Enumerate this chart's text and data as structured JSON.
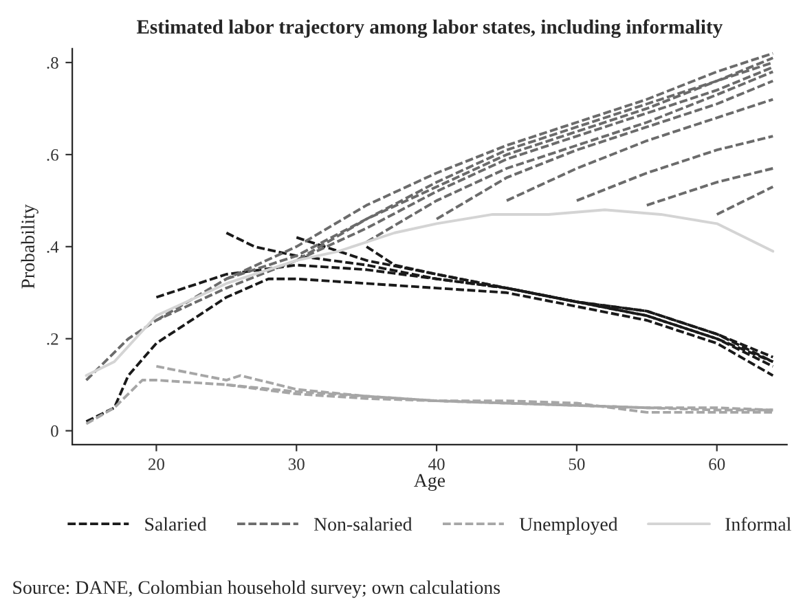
{
  "chart_data": {
    "type": "line",
    "title": "Estimated labor trajectory among labor states, including informality",
    "xlabel": "Age",
    "ylabel": "Probability",
    "xlim": [
      14,
      65
    ],
    "xticks": [
      20,
      30,
      40,
      50,
      60
    ],
    "ylim": [
      -0.03,
      0.83
    ],
    "yticks": [
      0,
      {
        "value": 0.2,
        "label": ".2"
      },
      {
        "value": 0.4,
        "label": ".4"
      },
      {
        "value": 0.6,
        "label": ".6"
      },
      {
        "value": 0.8,
        "label": ".8"
      }
    ],
    "grid": false,
    "legend": "bottom",
    "line_style": "dashed",
    "marker": "none",
    "annotations": [
      "Source: DANE, Colombian household survey; own calculations"
    ],
    "series": [
      {
        "name": "Salaried",
        "color": "#1a1a1a",
        "x": [
          15,
          17,
          18,
          20,
          25,
          28,
          30,
          35,
          40,
          45,
          50,
          55,
          60,
          64
        ],
        "values": [
          0.02,
          0.05,
          0.12,
          0.19,
          0.29,
          0.33,
          0.33,
          0.32,
          0.31,
          0.3,
          0.27,
          0.24,
          0.19,
          0.12
        ]
      },
      {
        "color": "#1a1a1a",
        "x": [
          20,
          25,
          30,
          35,
          40,
          45,
          50,
          55,
          60,
          64
        ],
        "values": [
          0.29,
          0.34,
          0.36,
          0.35,
          0.33,
          0.31,
          0.28,
          0.25,
          0.2,
          0.15
        ]
      },
      {
        "color": "#1a1a1a",
        "x": [
          25,
          27,
          30,
          35,
          40,
          45,
          50,
          55,
          60,
          64
        ],
        "values": [
          0.43,
          0.4,
          0.38,
          0.36,
          0.33,
          0.31,
          0.28,
          0.26,
          0.21,
          0.16
        ]
      },
      {
        "color": "#1a1a1a",
        "x": [
          30,
          33,
          35,
          40,
          45,
          50,
          55,
          60,
          64
        ],
        "values": [
          0.42,
          0.39,
          0.37,
          0.34,
          0.31,
          0.28,
          0.26,
          0.21,
          0.15
        ]
      },
      {
        "color": "#1a1a1a",
        "x": [
          35,
          37,
          40,
          45,
          50,
          55,
          60,
          64
        ],
        "values": [
          0.4,
          0.36,
          0.34,
          0.31,
          0.28,
          0.25,
          0.2,
          0.14
        ]
      },
      {
        "name": "Non-salaried",
        "color": "#6b6b6b",
        "x": [
          15,
          18,
          20,
          25,
          30,
          35,
          40,
          45,
          50,
          55,
          60,
          64
        ],
        "values": [
          0.11,
          0.2,
          0.24,
          0.31,
          0.37,
          0.46,
          0.54,
          0.61,
          0.66,
          0.71,
          0.76,
          0.8
        ]
      },
      {
        "color": "#6b6b6b",
        "x": [
          20,
          25,
          30,
          35,
          40,
          45,
          50,
          55,
          60,
          64
        ],
        "values": [
          0.24,
          0.33,
          0.4,
          0.49,
          0.56,
          0.62,
          0.67,
          0.72,
          0.78,
          0.82
        ]
      },
      {
        "color": "#6b6b6b",
        "x": [
          25,
          30,
          35,
          40,
          45,
          50,
          55,
          60,
          64
        ],
        "values": [
          0.33,
          0.38,
          0.46,
          0.53,
          0.6,
          0.65,
          0.7,
          0.76,
          0.81
        ]
      },
      {
        "color": "#6b6b6b",
        "x": [
          30,
          35,
          40,
          45,
          50,
          55,
          60,
          64
        ],
        "values": [
          0.37,
          0.44,
          0.52,
          0.59,
          0.64,
          0.69,
          0.74,
          0.79
        ]
      },
      {
        "color": "#6b6b6b",
        "x": [
          35,
          40,
          45,
          50,
          55,
          60,
          64
        ],
        "values": [
          0.41,
          0.5,
          0.57,
          0.62,
          0.67,
          0.73,
          0.78
        ]
      },
      {
        "color": "#6b6b6b",
        "x": [
          40,
          45,
          50,
          55,
          60,
          64
        ],
        "values": [
          0.46,
          0.55,
          0.61,
          0.66,
          0.71,
          0.76
        ]
      },
      {
        "color": "#6b6b6b",
        "x": [
          45,
          50,
          55,
          60,
          64
        ],
        "values": [
          0.5,
          0.57,
          0.63,
          0.68,
          0.72
        ]
      },
      {
        "color": "#6b6b6b",
        "x": [
          50,
          55,
          60,
          64
        ],
        "values": [
          0.5,
          0.56,
          0.61,
          0.64
        ]
      },
      {
        "color": "#6b6b6b",
        "x": [
          55,
          60,
          64
        ],
        "values": [
          0.49,
          0.54,
          0.57
        ]
      },
      {
        "color": "#6b6b6b",
        "x": [
          60,
          64
        ],
        "values": [
          0.47,
          0.53
        ]
      },
      {
        "name": "Unemployed",
        "color": "#a6a6a6",
        "x": [
          15,
          17,
          19,
          20,
          25,
          30,
          35,
          40,
          45,
          50,
          55,
          60,
          64
        ],
        "values": [
          0.015,
          0.05,
          0.11,
          0.11,
          0.1,
          0.085,
          0.075,
          0.065,
          0.06,
          0.055,
          0.05,
          0.05,
          0.045
        ]
      },
      {
        "color": "#a6a6a6",
        "x": [
          20,
          25,
          26,
          30,
          35,
          40,
          45,
          50,
          55,
          60,
          64
        ],
        "values": [
          0.14,
          0.11,
          0.12,
          0.09,
          0.075,
          0.065,
          0.06,
          0.055,
          0.05,
          0.045,
          0.045
        ]
      },
      {
        "color": "#a6a6a6",
        "x": [
          25,
          30,
          35,
          40,
          45,
          50,
          55,
          60,
          64
        ],
        "values": [
          0.1,
          0.08,
          0.07,
          0.065,
          0.065,
          0.06,
          0.04,
          0.04,
          0.04
        ]
      },
      {
        "name": "Informal",
        "color": "#d4d4d4",
        "line_style": "solid",
        "x": [
          15,
          17,
          20,
          25,
          30,
          33,
          37,
          40,
          44,
          48,
          52,
          56,
          60,
          64
        ],
        "values": [
          0.12,
          0.15,
          0.25,
          0.32,
          0.37,
          0.39,
          0.43,
          0.45,
          0.47,
          0.47,
          0.48,
          0.47,
          0.45,
          0.39
        ]
      }
    ]
  }
}
